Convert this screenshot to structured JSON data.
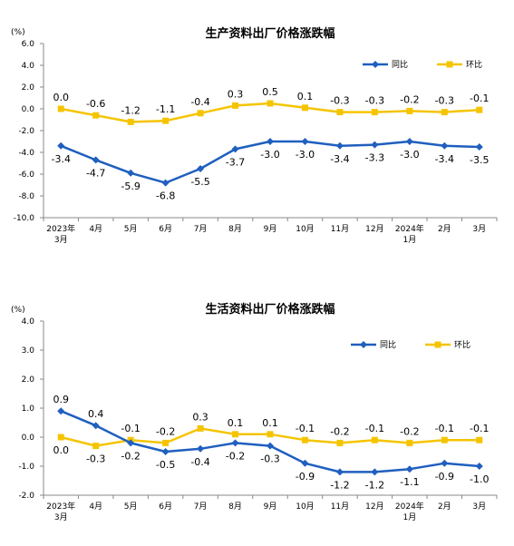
{
  "chart_data": [
    {
      "type": "line",
      "title": "生产资料出厂价格涨跌幅",
      "unit": "(%)",
      "ylim": [
        -10.0,
        6.0
      ],
      "yticks": [
        "6.0",
        "4.0",
        "2.0",
        "0.0",
        "-2.0",
        "-4.0",
        "-6.0",
        "-8.0",
        "-10.0"
      ],
      "categories": [
        "2023年3月",
        "4月",
        "5月",
        "6月",
        "7月",
        "8月",
        "9月",
        "10月",
        "11月",
        "12月",
        "2024年1月",
        "2月",
        "3月"
      ],
      "category_labels": [
        [
          "2023年",
          "3月"
        ],
        [
          "4月"
        ],
        [
          "5月"
        ],
        [
          "6月"
        ],
        [
          "7月"
        ],
        [
          "8月"
        ],
        [
          "9月"
        ],
        [
          "10月"
        ],
        [
          "11月"
        ],
        [
          "12月"
        ],
        [
          "2024年",
          "1月"
        ],
        [
          "2月"
        ],
        [
          "3月"
        ]
      ],
      "legend_position": "top-right",
      "grid": false,
      "series": [
        {
          "name": "同比",
          "color": "#1f5fbf",
          "marker": "diamond",
          "label_position": "below",
          "values": [
            -3.4,
            -4.7,
            -5.9,
            -6.8,
            -5.5,
            -3.7,
            -3.0,
            -3.0,
            -3.4,
            -3.3,
            -3.0,
            -3.4,
            -3.5
          ],
          "labels": [
            "-3.4",
            "-4.7",
            "-5.9",
            "-6.8",
            "-5.5",
            "-3.7",
            "-3.0",
            "-3.0",
            "-3.4",
            "-3.3",
            "-3.0",
            "-3.4",
            "-3.5"
          ]
        },
        {
          "name": "环比",
          "color": "#f5c400",
          "marker": "square",
          "label_position": "above",
          "values": [
            0.0,
            -0.6,
            -1.2,
            -1.1,
            -0.4,
            0.3,
            0.5,
            0.1,
            -0.3,
            -0.3,
            -0.2,
            -0.3,
            -0.1
          ],
          "labels": [
            "0.0",
            "-0.6",
            "-1.2",
            "-1.1",
            "-0.4",
            "0.3",
            "0.5",
            "0.1",
            "-0.3",
            "-0.3",
            "-0.2",
            "-0.3",
            "-0.1"
          ]
        }
      ]
    },
    {
      "type": "line",
      "title": "生活资料出厂价格涨跌幅",
      "unit": "(%)",
      "ylim": [
        -2.0,
        4.0
      ],
      "yticks": [
        "4.0",
        "3.0",
        "2.0",
        "1.0",
        "0.0",
        "-1.0",
        "-2.0"
      ],
      "categories": [
        "2023年3月",
        "4月",
        "5月",
        "6月",
        "7月",
        "8月",
        "9月",
        "10月",
        "11月",
        "12月",
        "2024年1月",
        "2月",
        "3月"
      ],
      "category_labels": [
        [
          "2023年",
          "3月"
        ],
        [
          "4月"
        ],
        [
          "5月"
        ],
        [
          "6月"
        ],
        [
          "7月"
        ],
        [
          "8月"
        ],
        [
          "9月"
        ],
        [
          "10月"
        ],
        [
          "11月"
        ],
        [
          "12月"
        ],
        [
          "2024年",
          "1月"
        ],
        [
          "2月"
        ],
        [
          "3月"
        ]
      ],
      "legend_position": "top-right",
      "grid": false,
      "series": [
        {
          "name": "同比",
          "color": "#1f5fbf",
          "marker": "diamond",
          "values": [
            0.9,
            0.4,
            -0.2,
            -0.5,
            -0.4,
            -0.2,
            -0.3,
            -0.9,
            -1.2,
            -1.2,
            -1.1,
            -0.9,
            -1.0
          ],
          "labels": [
            "0.9",
            "0.4",
            "-0.2",
            "-0.5",
            "-0.4",
            "-0.2",
            "-0.3",
            "-0.9",
            "-1.2",
            "-1.2",
            "-1.1",
            "-0.9",
            "-1.0"
          ],
          "label_sides": [
            "above",
            "above",
            "below",
            "below",
            "below",
            "below",
            "below",
            "below",
            "below",
            "below",
            "below",
            "below",
            "below"
          ]
        },
        {
          "name": "环比",
          "color": "#f5c400",
          "marker": "square",
          "values": [
            0.0,
            -0.3,
            -0.1,
            -0.2,
            0.3,
            0.1,
            0.1,
            -0.1,
            -0.2,
            -0.1,
            -0.2,
            -0.1,
            -0.1
          ],
          "labels": [
            "0.0",
            "-0.3",
            "-0.1",
            "-0.2",
            "0.3",
            "0.1",
            "0.1",
            "-0.1",
            "-0.2",
            "-0.1",
            "-0.2",
            "-0.1",
            "-0.1"
          ],
          "label_sides": [
            "below",
            "below",
            "above",
            "above",
            "above",
            "above",
            "above",
            "above",
            "above",
            "above",
            "above",
            "above",
            "above"
          ]
        }
      ]
    }
  ]
}
